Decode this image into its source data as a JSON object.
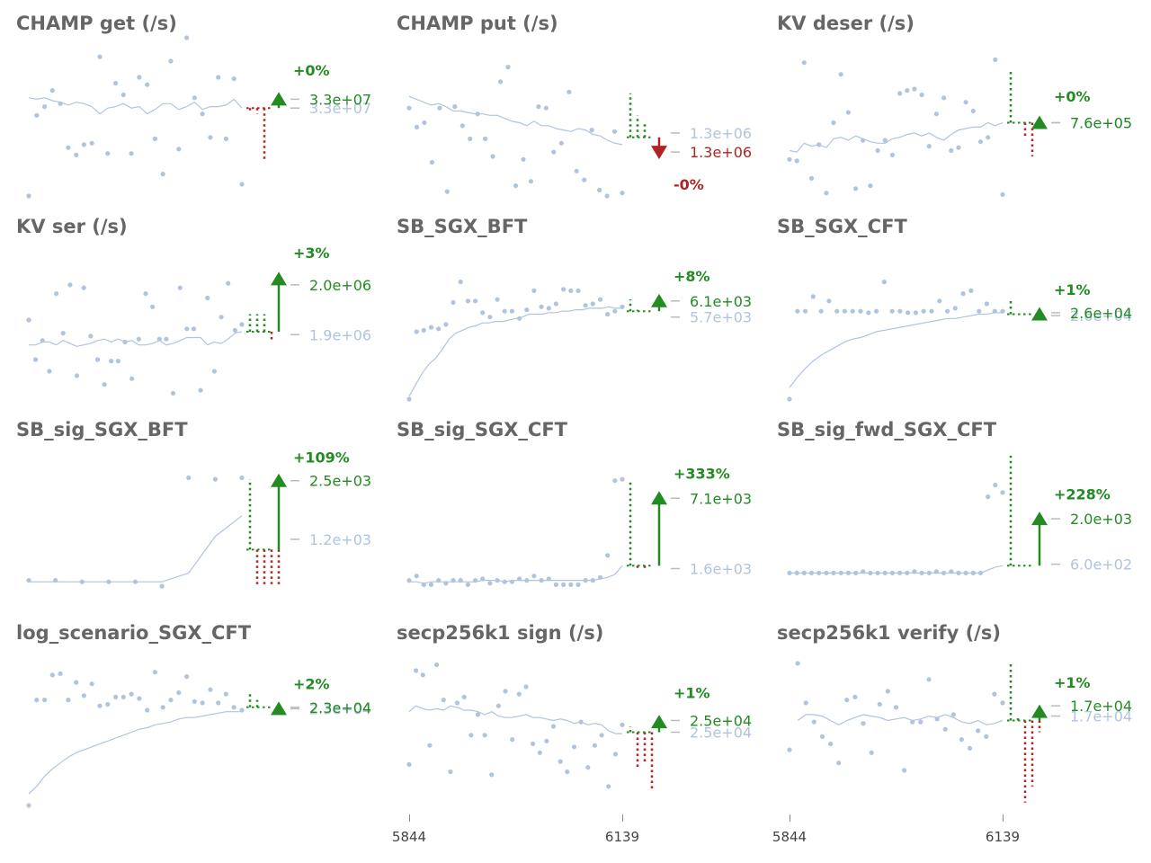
{
  "colors": {
    "title": "#666666",
    "points": "#b0c4de",
    "trend": "#b0c4de",
    "improve": "#228b22",
    "regress": "#b22222",
    "baseline_label": "#b0c4de"
  },
  "x_ticks": [
    "5844",
    "6139"
  ],
  "chart_data": [
    {
      "type": "scatter",
      "title": "CHAMP get (/s)",
      "change_pct": "+0%",
      "direction": "up",
      "new_value_label": "3.3e+07",
      "baseline_label": "3.3e+07",
      "points": [
        0.0,
        0.55,
        0.61,
        0.72,
        0.63,
        0.33,
        0.28,
        0.35,
        0.36,
        0.95,
        0.29,
        0.77,
        0.69,
        0.29,
        0.81,
        0.76,
        0.39,
        0.15,
        0.92,
        0.32,
        1.08,
        0.67,
        0.56,
        0.4,
        0.81,
        0.39,
        0.8,
        0.08
      ],
      "trend": [
        0.67,
        0.66,
        0.67,
        0.65,
        0.64,
        0.62,
        0.64,
        0.63,
        0.61,
        0.56,
        0.6,
        0.61,
        0.63,
        0.6,
        0.61,
        0.56,
        0.59,
        0.63,
        0.63,
        0.59,
        0.61,
        0.64,
        0.59,
        0.61,
        0.61,
        0.62,
        0.66,
        0.6
      ],
      "baseline_y": 0.6,
      "new_y": 0.66,
      "new_label_y": 0.66,
      "base_label_y": 0.6,
      "pct_y": 0.86,
      "arrow": true,
      "green_bars": [],
      "red_bars": [
        [
          0.6,
          0.58
        ],
        [
          0.6,
          0.56
        ],
        [
          0.6,
          0.25
        ]
      ]
    },
    {
      "type": "scatter",
      "title": "CHAMP put (/s)",
      "change_pct": "-0%",
      "direction": "down",
      "new_value_label": "1.3e+06",
      "baseline_label": "1.3e+06",
      "points": [
        0.6,
        0.47,
        0.5,
        0.23,
        0.6,
        0.03,
        0.61,
        0.48,
        0.39,
        0.56,
        0.39,
        0.27,
        0.78,
        0.88,
        0.07,
        0.25,
        0.1,
        0.61,
        0.6,
        0.3,
        0.36,
        0.71,
        0.17,
        0.11,
        0.45,
        0.04,
        0.0,
        0.44,
        0.02
      ],
      "trend": [
        0.68,
        0.66,
        0.64,
        0.62,
        0.63,
        0.61,
        0.58,
        0.58,
        0.57,
        0.56,
        0.56,
        0.55,
        0.55,
        0.53,
        0.51,
        0.5,
        0.48,
        0.51,
        0.48,
        0.48,
        0.46,
        0.45,
        0.44,
        0.46,
        0.45,
        0.42,
        0.41,
        0.38,
        0.36,
        0.35
      ],
      "baseline_y": 0.4,
      "new_y": 0.3,
      "new_label_y": 0.3,
      "base_label_y": 0.43,
      "pct_y": 0.08,
      "arrow": true,
      "green_bars": [
        [
          0.4,
          0.7
        ],
        [
          0.4,
          0.55
        ],
        [
          0.4,
          0.49
        ]
      ],
      "red_bars": []
    },
    {
      "type": "scatter",
      "title": "KV deser (/s)",
      "change_pct": "+0%",
      "direction": "up",
      "new_value_label": "7.6e+05",
      "baseline_label": "7.6e+05",
      "points": [
        0.25,
        0.24,
        0.91,
        0.12,
        0.35,
        0.02,
        0.5,
        0.83,
        0.57,
        0.05,
        0.38,
        0.07,
        0.31,
        0.38,
        0.28,
        0.7,
        0.72,
        0.73,
        0.69,
        0.34,
        0.56,
        0.67,
        0.31,
        0.33,
        0.64,
        0.58,
        0.37,
        0.4,
        0.93,
        0.01
      ],
      "trend": [
        0.31,
        0.3,
        0.36,
        0.34,
        0.35,
        0.33,
        0.39,
        0.4,
        0.38,
        0.41,
        0.39,
        0.37,
        0.36,
        0.36,
        0.39,
        0.4,
        0.42,
        0.43,
        0.41,
        0.43,
        0.4,
        0.38,
        0.42,
        0.45,
        0.46,
        0.47,
        0.47,
        0.5,
        0.48,
        0.5
      ],
      "baseline_y": 0.5,
      "new_y": 0.5,
      "new_label_y": 0.5,
      "base_label_y": 0.5,
      "pct_y": 0.68,
      "arrow": true,
      "green_bars": [
        [
          0.5,
          0.85
        ],
        [
          0.5,
          0.5
        ]
      ],
      "red_bars": [
        [
          0.5,
          0.39
        ],
        [
          0.5,
          0.27
        ]
      ]
    },
    {
      "type": "scatter",
      "title": "KV ser (/s)",
      "change_pct": "+3%",
      "direction": "up",
      "new_value_label": "2.0e+06",
      "baseline_label": "1.9e+06",
      "points": [
        0.54,
        0.27,
        0.4,
        0.19,
        0.72,
        0.45,
        0.78,
        0.16,
        0.76,
        0.43,
        0.27,
        0.1,
        0.26,
        0.26,
        0.39,
        0.14,
        0.41,
        0.72,
        0.63,
        0.41,
        0.41,
        0.04,
        0.76,
        0.48,
        0.48,
        0.06,
        0.69,
        0.19,
        0.56,
        0.79,
        0.47,
        0.51
      ],
      "trend": [
        0.37,
        0.37,
        0.39,
        0.39,
        0.37,
        0.4,
        0.38,
        0.36,
        0.37,
        0.38,
        0.4,
        0.41,
        0.39,
        0.41,
        0.39,
        0.4,
        0.37,
        0.37,
        0.38,
        0.4,
        0.37,
        0.38,
        0.4,
        0.42,
        0.42,
        0.42,
        0.37,
        0.39,
        0.38,
        0.41,
        0.45,
        0.46
      ],
      "baseline_y": 0.46,
      "new_y": 0.82,
      "new_label_y": 0.78,
      "base_label_y": 0.44,
      "pct_y": 1.0,
      "arrow": true,
      "green_bars": [
        [
          0.46,
          0.58
        ],
        [
          0.46,
          0.58
        ],
        [
          0.46,
          0.58
        ]
      ],
      "red_bars": [
        [
          0.46,
          0.4
        ]
      ]
    },
    {
      "type": "scatter",
      "title": "SB_SGX_BFT",
      "change_pct": "+8%",
      "direction": "up",
      "new_value_label": "6.1e+03",
      "baseline_label": "5.7e+03",
      "points": [
        0.0,
        0.46,
        0.47,
        0.49,
        0.48,
        0.51,
        0.66,
        0.8,
        0.67,
        0.67,
        0.59,
        0.56,
        0.68,
        0.6,
        0.6,
        0.55,
        0.61,
        0.74,
        0.63,
        0.62,
        0.65,
        0.75,
        0.74,
        0.74,
        0.64,
        0.65,
        0.68,
        0.58,
        0.6,
        0.63
      ],
      "trend": [
        0.02,
        0.1,
        0.18,
        0.24,
        0.28,
        0.34,
        0.41,
        0.45,
        0.47,
        0.49,
        0.5,
        0.52,
        0.52,
        0.53,
        0.53,
        0.54,
        0.55,
        0.56,
        0.58,
        0.58,
        0.58,
        0.59,
        0.59,
        0.6,
        0.6,
        0.61,
        0.61,
        0.62,
        0.62,
        0.62,
        0.63,
        0.62,
        0.62
      ],
      "baseline_y": 0.6,
      "new_y": 0.67,
      "new_label_y": 0.67,
      "base_label_y": 0.56,
      "pct_y": 0.84,
      "arrow": true,
      "green_bars": [
        [
          0.6,
          0.68
        ],
        [
          0.6,
          0.61
        ]
      ],
      "red_bars": []
    },
    {
      "type": "scatter",
      "title": "SB_SGX_CFT",
      "change_pct": "+1%",
      "direction": "up",
      "new_value_label": "2.6e+04",
      "baseline_label": "2.6e+04",
      "points": [
        0.0,
        0.6,
        0.6,
        0.7,
        0.6,
        0.67,
        0.6,
        0.6,
        0.6,
        0.6,
        0.59,
        0.6,
        0.8,
        0.6,
        0.6,
        0.59,
        0.59,
        0.6,
        0.6,
        0.67,
        0.6,
        0.62,
        0.72,
        0.74,
        0.6,
        0.65,
        0.6,
        0.6
      ],
      "trend": [
        0.08,
        0.15,
        0.21,
        0.26,
        0.3,
        0.33,
        0.36,
        0.39,
        0.41,
        0.42,
        0.44,
        0.46,
        0.47,
        0.48,
        0.49,
        0.5,
        0.51,
        0.52,
        0.53,
        0.54,
        0.55,
        0.55,
        0.56,
        0.57,
        0.58,
        0.58,
        0.59,
        0.59
      ],
      "baseline_y": 0.58,
      "new_y": 0.58,
      "new_label_y": 0.59,
      "base_label_y": 0.57,
      "pct_y": 0.75,
      "arrow": true,
      "green_bars": [
        [
          0.58,
          0.67
        ]
      ],
      "red_bars": []
    },
    {
      "type": "scatter",
      "title": "SB_sig_SGX_BFT",
      "change_pct": "+109%",
      "direction": "up",
      "new_value_label": "2.5e+03",
      "baseline_label": "1.2e+03",
      "points": [
        0.15,
        0.15,
        0.14,
        0.14,
        0.14,
        0.11,
        0.85,
        0.84,
        0.85
      ],
      "trend": [
        0.14,
        0.14,
        0.14,
        0.14,
        0.14,
        0.14,
        0.2,
        0.45,
        0.59
      ],
      "baseline_y": 0.36,
      "new_y": 0.83,
      "new_label_y": 0.83,
      "base_label_y": 0.43,
      "pct_y": 0.99,
      "arrow": true,
      "green_bars": [
        [
          0.36,
          0.84
        ]
      ],
      "red_bars": [
        [
          0.36,
          0.12
        ],
        [
          0.36,
          0.12
        ],
        [
          0.36,
          0.12
        ],
        [
          0.36,
          0.12
        ]
      ]
    },
    {
      "type": "scatter",
      "title": "SB_sig_SGX_CFT",
      "change_pct": "+333%",
      "direction": "up",
      "new_value_label": "7.1e+03",
      "baseline_label": "1.6e+03",
      "points": [
        0.15,
        0.18,
        0.12,
        0.12,
        0.15,
        0.13,
        0.15,
        0.15,
        0.12,
        0.15,
        0.16,
        0.13,
        0.15,
        0.14,
        0.14,
        0.16,
        0.15,
        0.18,
        0.15,
        0.16,
        0.12,
        0.12,
        0.12,
        0.12,
        0.15,
        0.15,
        0.17,
        0.32,
        0.83,
        0.84
      ],
      "trend": [
        0.14,
        0.14,
        0.13,
        0.14,
        0.14,
        0.14,
        0.14,
        0.14,
        0.14,
        0.14,
        0.15,
        0.15,
        0.15,
        0.14,
        0.15,
        0.15,
        0.15,
        0.15,
        0.15,
        0.15,
        0.15,
        0.15,
        0.15,
        0.15,
        0.15,
        0.15,
        0.16,
        0.17,
        0.19,
        0.25
      ],
      "baseline_y": 0.25,
      "new_y": 0.71,
      "new_label_y": 0.71,
      "base_label_y": 0.23,
      "pct_y": 0.88,
      "arrow": true,
      "green_bars": [
        [
          0.25,
          0.83
        ]
      ],
      "red_bars": [
        [
          0.25,
          0.23
        ],
        [
          0.25,
          0.23
        ]
      ]
    },
    {
      "type": "scatter",
      "title": "SB_sig_fwd_SGX_CFT",
      "change_pct": "+228%",
      "direction": "up",
      "new_value_label": "2.0e+03",
      "baseline_label": "6.0e+02",
      "points": [
        0.2,
        0.2,
        0.2,
        0.2,
        0.2,
        0.2,
        0.2,
        0.2,
        0.2,
        0.2,
        0.21,
        0.2,
        0.2,
        0.2,
        0.2,
        0.2,
        0.2,
        0.21,
        0.2,
        0.2,
        0.21,
        0.2,
        0.21,
        0.2,
        0.2,
        0.2,
        0.2,
        0.72,
        0.8,
        0.75
      ],
      "trend": [
        0.2,
        0.2,
        0.2,
        0.2,
        0.2,
        0.2,
        0.2,
        0.2,
        0.2,
        0.2,
        0.2,
        0.2,
        0.2,
        0.2,
        0.2,
        0.2,
        0.2,
        0.2,
        0.2,
        0.2,
        0.2,
        0.2,
        0.2,
        0.2,
        0.2,
        0.2,
        0.2,
        0.22,
        0.24,
        0.25
      ],
      "baseline_y": 0.25,
      "new_y": 0.57,
      "new_label_y": 0.57,
      "base_label_y": 0.26,
      "pct_y": 0.74,
      "arrow": true,
      "green_bars": [
        [
          0.25,
          1.0
        ]
      ],
      "red_bars": [
        [
          0.25,
          0.25
        ],
        [
          0.25,
          0.25
        ]
      ]
    },
    {
      "type": "scatter",
      "title": "log_scenario_SGX_CFT",
      "change_pct": "+2%",
      "direction": "up",
      "new_value_label": "2.3e+04",
      "baseline_label": "2.3e+04",
      "points": [
        0.0,
        0.72,
        0.72,
        0.89,
        0.9,
        0.72,
        0.84,
        0.75,
        0.83,
        0.68,
        0.69,
        0.74,
        0.74,
        0.76,
        0.73,
        0.65,
        0.91,
        0.67,
        0.72,
        0.77,
        0.88,
        0.71,
        0.7,
        0.79,
        0.7,
        0.76,
        0.67,
        0.65
      ],
      "trend": [
        0.08,
        0.13,
        0.2,
        0.25,
        0.29,
        0.33,
        0.36,
        0.38,
        0.4,
        0.42,
        0.44,
        0.46,
        0.48,
        0.5,
        0.52,
        0.53,
        0.55,
        0.56,
        0.57,
        0.59,
        0.6,
        0.6,
        0.61,
        0.62,
        0.63,
        0.64,
        0.64,
        0.64
      ],
      "baseline_y": 0.67,
      "new_y": 0.66,
      "new_label_y": 0.67,
      "base_label_y": 0.66,
      "pct_y": 0.83,
      "arrow": true,
      "green_bars": [
        [
          0.67,
          0.77
        ],
        [
          0.67,
          0.72
        ]
      ],
      "red_bars": []
    },
    {
      "type": "scatter",
      "title": "secp256k1 sign (/s)",
      "change_pct": "+1%",
      "direction": "up",
      "new_value_label": "2.5e+04",
      "baseline_label": "2.5e+04",
      "points": [
        0.28,
        0.92,
        0.89,
        0.41,
        0.96,
        0.72,
        0.23,
        0.7,
        0.74,
        0.48,
        0.62,
        0.48,
        0.21,
        0.68,
        0.78,
        0.45,
        0.76,
        0.81,
        0.42,
        0.36,
        0.44,
        0.54,
        0.3,
        0.23,
        0.4,
        0.57,
        0.26,
        0.41,
        0.48,
        0.13,
        0.35,
        0.55
      ],
      "trend": [
        0.64,
        0.68,
        0.66,
        0.65,
        0.66,
        0.65,
        0.68,
        0.67,
        0.65,
        0.65,
        0.64,
        0.62,
        0.64,
        0.61,
        0.6,
        0.6,
        0.61,
        0.62,
        0.6,
        0.6,
        0.59,
        0.58,
        0.59,
        0.58,
        0.56,
        0.57,
        0.55,
        0.56,
        0.55,
        0.51,
        0.49,
        0.49
      ],
      "baseline_y": 0.5,
      "new_y": 0.57,
      "new_label_y": 0.58,
      "base_label_y": 0.5,
      "pct_y": 0.77,
      "arrow": true,
      "green_bars": [
        [
          0.5,
          0.54
        ]
      ],
      "red_bars": [
        [
          0.5,
          0.25
        ],
        [
          0.5,
          0.28
        ],
        [
          0.5,
          0.1
        ]
      ]
    },
    {
      "type": "scatter",
      "title": "secp256k1 verify (/s)",
      "change_pct": "+1%",
      "direction": "up",
      "new_value_label": "1.7e+04",
      "baseline_label": "1.7e+04",
      "points": [
        0.38,
        0.97,
        0.7,
        0.57,
        0.47,
        0.42,
        0.29,
        0.72,
        0.74,
        0.56,
        0.36,
        0.69,
        0.78,
        0.67,
        0.24,
        0.57,
        0.57,
        0.86,
        0.59,
        0.52,
        0.62,
        0.45,
        0.39,
        0.51,
        0.47,
        0.76,
        0.7
      ],
      "trend": [
        0.58,
        0.62,
        0.62,
        0.61,
        0.58,
        0.55,
        0.58,
        0.6,
        0.62,
        0.61,
        0.6,
        0.58,
        0.59,
        0.6,
        0.58,
        0.59,
        0.61,
        0.6,
        0.62,
        0.6,
        0.57,
        0.56,
        0.58,
        0.55,
        0.56,
        0.58
      ],
      "baseline_y": 0.58,
      "new_y": 0.64,
      "new_label_y": 0.68,
      "base_label_y": 0.61,
      "pct_y": 0.84,
      "arrow": true,
      "green_bars": [
        [
          0.58,
          0.98
        ],
        [
          0.58,
          0.6
        ]
      ],
      "red_bars": [
        [
          0.58,
          0.02
        ],
        [
          0.58,
          0.13
        ],
        [
          0.58,
          0.5
        ]
      ]
    }
  ]
}
